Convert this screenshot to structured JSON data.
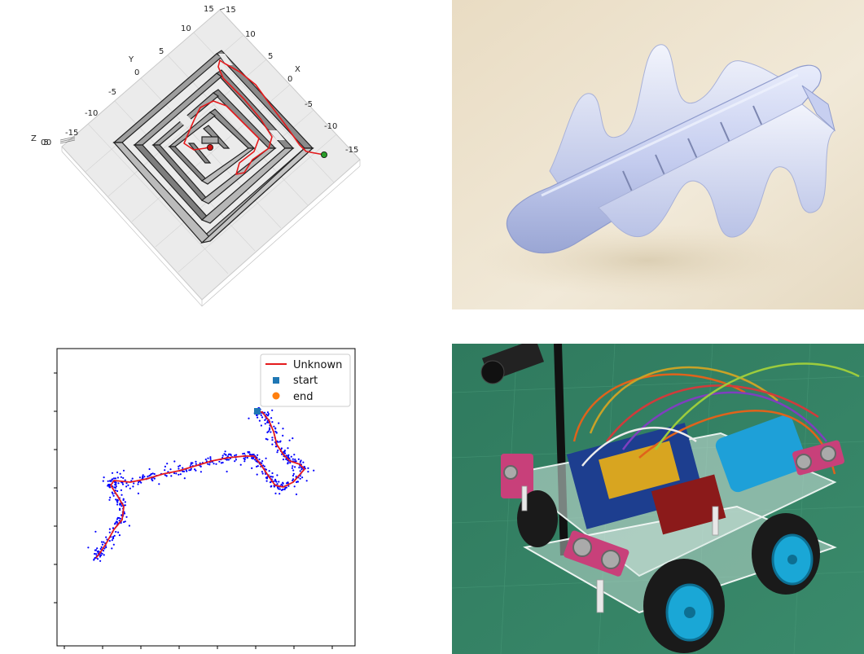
{
  "maze_plot": {
    "x_label": "X",
    "y_label": "Y",
    "z_label": "Z",
    "z_tick_overlap": "0.50",
    "x_ticks": [
      "-15",
      "-10",
      "-5",
      "0",
      "5",
      "10",
      "15"
    ],
    "y_ticks": [
      "-15",
      "-10",
      "-5",
      "0",
      "5",
      "10",
      "15"
    ],
    "colors": {
      "path": "#e41a1c",
      "wall": "#b7b7b7",
      "start": "#2a9d2a",
      "end": "#c81414"
    }
  },
  "robot_render": {
    "subject": "undulating-fin-robot-3d-model"
  },
  "chart_data": {
    "type": "line",
    "series": [
      {
        "name": "Unknown",
        "kind": "line",
        "color": "#e41a1c"
      },
      {
        "name": "start",
        "kind": "marker-square",
        "color": "#1f77b4"
      },
      {
        "name": "end",
        "kind": "marker-circle",
        "color": "#ff7f0e"
      }
    ],
    "scatter_color": "#0000ff",
    "legend_position": "top-right",
    "tick_labels_shown": false
  },
  "car_photo": {
    "subject": "four-wheel-robot-car-with-ultrasonic-sensors"
  }
}
